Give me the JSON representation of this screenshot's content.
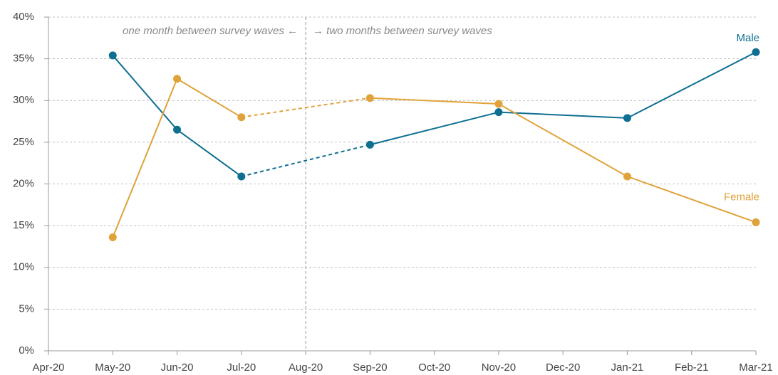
{
  "chart_data": {
    "type": "line",
    "categories": [
      "Apr-20",
      "May-20",
      "Jun-20",
      "Jul-20",
      "Aug-20",
      "Sep-20",
      "Oct-20",
      "Nov-20",
      "Dec-20",
      "Jan-21",
      "Feb-21",
      "Mar-21"
    ],
    "series": [
      {
        "name": "Male",
        "color": "#0e6f91",
        "values": [
          null,
          35.4,
          26.5,
          20.9,
          null,
          24.7,
          null,
          28.6,
          null,
          27.9,
          null,
          35.8
        ]
      },
      {
        "name": "Female",
        "color": "#e0a23a",
        "values": [
          null,
          13.6,
          32.6,
          28.0,
          null,
          30.3,
          null,
          29.6,
          null,
          20.9,
          null,
          15.4
        ]
      }
    ],
    "ylim": [
      0,
      40
    ],
    "yticks": [
      {
        "value": 0,
        "label": "0%"
      },
      {
        "value": 5,
        "label": "5%"
      },
      {
        "value": 10,
        "label": "10%"
      },
      {
        "value": 15,
        "label": "15%"
      },
      {
        "value": 20,
        "label": "20%"
      },
      {
        "value": 25,
        "label": "25%"
      },
      {
        "value": 30,
        "label": "30%"
      },
      {
        "value": 35,
        "label": "35%"
      },
      {
        "value": 40,
        "label": "40%"
      }
    ],
    "grid": true,
    "divider": "Aug-20",
    "annotations": [
      "one month between survey waves ←",
      "→ two months between survey waves"
    ]
  }
}
